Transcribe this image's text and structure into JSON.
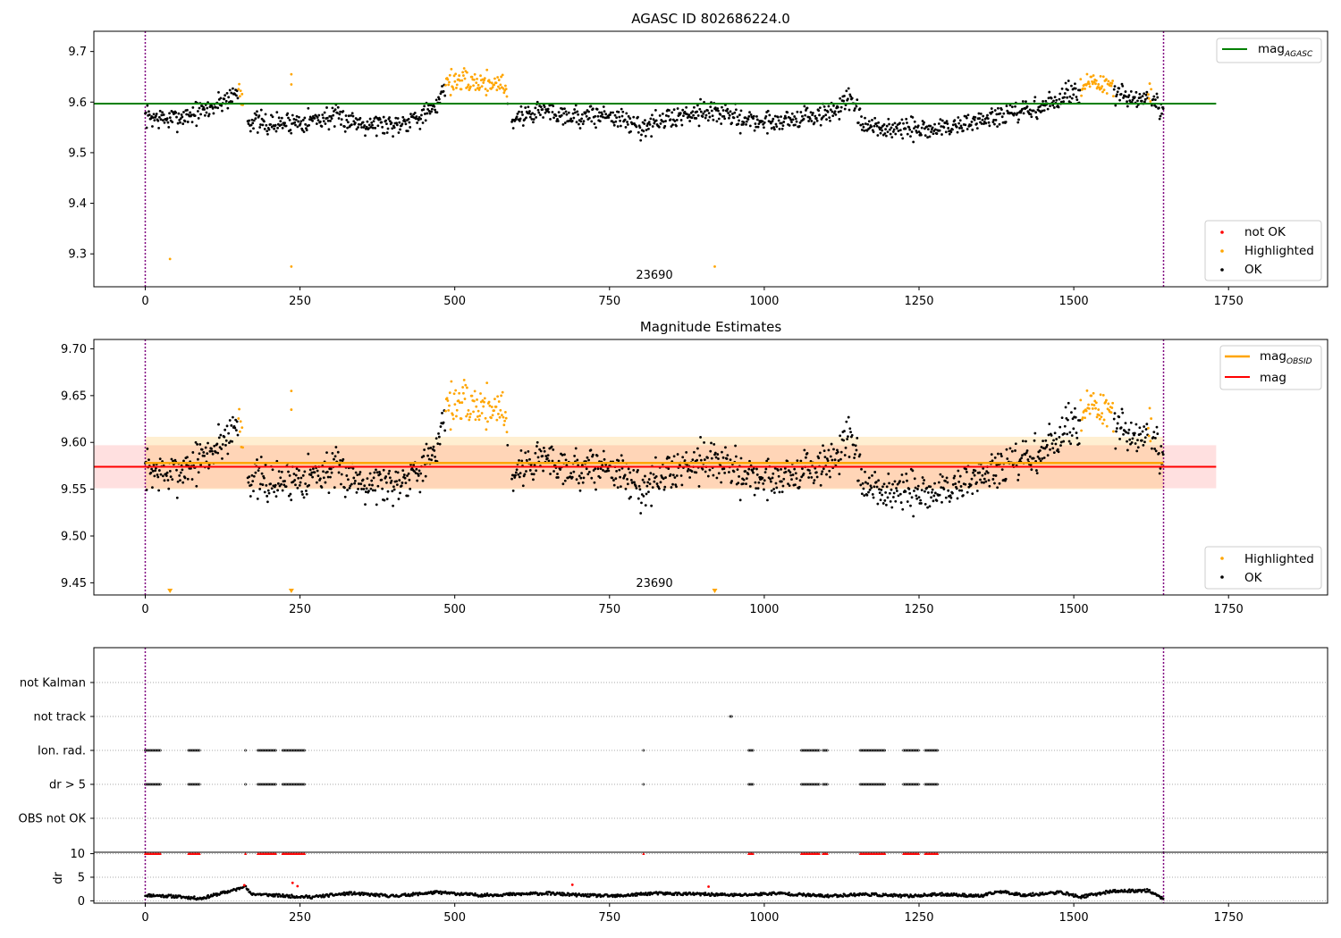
{
  "chart_data": [
    {
      "type": "scatter",
      "title": "AGASC ID 802686224.0",
      "xlim": [
        -83,
        1910
      ],
      "ylim": [
        9.235,
        9.74
      ],
      "xticks": [
        "0",
        "250",
        "500",
        "750",
        "1000",
        "1250",
        "1500",
        "1750"
      ],
      "yticks": [
        "9.3",
        "9.4",
        "9.5",
        "9.6",
        "9.7"
      ],
      "obsid_annotation": "23690",
      "vlines_x": [
        0,
        1645
      ],
      "hline": {
        "name": "mag_AGASC",
        "value": 9.597,
        "x_range": [
          -83,
          1730
        ],
        "color": "#008000"
      },
      "legend_lines": [
        {
          "label": "mag",
          "sub": "AGASC",
          "color": "#008000"
        }
      ],
      "legend_points": [
        {
          "label": "not OK",
          "color": "#ff0000"
        },
        {
          "label": "Highlighted",
          "color": "#ffa500"
        },
        {
          "label": "OK",
          "color": "#000000"
        }
      ],
      "series": [
        {
          "name": "OK",
          "color": "#000000",
          "profile": [
            [
              0,
              9.572
            ],
            [
              40,
              9.565
            ],
            [
              100,
              9.585
            ],
            [
              150,
              9.62
            ],
            [
              165,
              9.565
            ],
            [
              200,
              9.555
            ],
            [
              230,
              9.56
            ],
            [
              300,
              9.57
            ],
            [
              350,
              9.56
            ],
            [
              400,
              9.555
            ],
            [
              470,
              9.585
            ],
            [
              480,
              9.63
            ],
            [
              580,
              9.625
            ],
            [
              590,
              9.565
            ],
            [
              640,
              9.585
            ],
            [
              700,
              9.57
            ],
            [
              750,
              9.575
            ],
            [
              800,
              9.55
            ],
            [
              870,
              9.575
            ],
            [
              900,
              9.585
            ],
            [
              950,
              9.57
            ],
            [
              1000,
              9.56
            ],
            [
              1100,
              9.575
            ],
            [
              1140,
              9.605
            ],
            [
              1160,
              9.55
            ],
            [
              1250,
              9.545
            ],
            [
              1300,
              9.55
            ],
            [
              1350,
              9.565
            ],
            [
              1400,
              9.575
            ],
            [
              1450,
              9.59
            ],
            [
              1510,
              9.625
            ],
            [
              1560,
              9.62
            ],
            [
              1600,
              9.6
            ],
            [
              1620,
              9.61
            ],
            [
              1645,
              9.58
            ]
          ]
        },
        {
          "name": "Highlighted",
          "color": "#ffa500",
          "groups": [
            [
              150,
              160,
              9.64
            ],
            [
              485,
              585,
              9.645
            ],
            [
              1510,
              1565,
              9.655
            ],
            [
              1620,
              1625,
              9.635
            ]
          ],
          "extra": [
            [
              40,
              9.29
            ],
            [
              236,
              9.275
            ],
            [
              920,
              9.275
            ],
            [
              236,
              9.655
            ],
            [
              236,
              9.635
            ]
          ]
        }
      ]
    },
    {
      "type": "scatter",
      "title": "Magnitude Estimates",
      "xlim": [
        -83,
        1910
      ],
      "ylim": [
        9.437,
        9.71
      ],
      "xticks": [
        "0",
        "250",
        "500",
        "750",
        "1000",
        "1250",
        "1500",
        "1750"
      ],
      "yticks": [
        "9.45",
        "9.50",
        "9.55",
        "9.60",
        "9.65",
        "9.70"
      ],
      "obsid_annotation": "23690",
      "vlines_x": [
        0,
        1645
      ],
      "mag_obsid": {
        "value": 9.578,
        "band": [
          9.55,
          9.606
        ],
        "x_range": [
          0,
          1645
        ],
        "color": "#ffa500"
      },
      "mag": {
        "value": 9.574,
        "band": [
          9.551,
          9.597
        ],
        "x_range": [
          -83,
          1730
        ],
        "color": "#ff0000"
      },
      "triangle_markers_x": [
        40,
        236,
        920
      ],
      "legend_lines": [
        {
          "label": "mag",
          "sub": "OBSID",
          "color": "#ffa500"
        },
        {
          "label": "mag",
          "sub": "",
          "color": "#ff0000"
        }
      ],
      "legend_points": [
        {
          "label": "Highlighted",
          "color": "#ffa500"
        },
        {
          "label": "OK",
          "color": "#000000"
        }
      ]
    },
    {
      "type": "scatter",
      "title": "",
      "xlim": [
        -83,
        1910
      ],
      "flag_labels": [
        "not Kalman",
        "not track",
        "Ion. rad.",
        "dr > 5",
        "OBS not OK"
      ],
      "flag_ranges": {
        "not Kalman": [],
        "not track": [
          [
            945,
            948
          ]
        ],
        "Ion. rad.": [
          [
            0,
            25
          ],
          [
            70,
            88
          ],
          [
            162,
            164
          ],
          [
            182,
            212
          ],
          [
            222,
            258
          ],
          [
            805,
            806
          ],
          [
            975,
            982
          ],
          [
            1060,
            1090
          ],
          [
            1095,
            1102
          ],
          [
            1155,
            1195
          ],
          [
            1225,
            1250
          ],
          [
            1260,
            1282
          ]
        ],
        "dr > 5": [
          [
            0,
            25
          ],
          [
            70,
            88
          ],
          [
            162,
            164
          ],
          [
            182,
            212
          ],
          [
            222,
            258
          ],
          [
            805,
            806
          ],
          [
            975,
            982
          ],
          [
            1060,
            1090
          ],
          [
            1095,
            1102
          ],
          [
            1155,
            1195
          ],
          [
            1225,
            1250
          ],
          [
            1260,
            1282
          ]
        ],
        "OBS not OK": []
      },
      "dr_yticks": [
        "0",
        "5",
        "10"
      ],
      "dr_ylabel": "dr",
      "dr_ylim": [
        -0.5,
        10.3
      ],
      "xticks": [
        "0",
        "250",
        "500",
        "750",
        "1000",
        "1250",
        "1500",
        "1750"
      ],
      "vlines_x": [
        0,
        1645
      ],
      "dr_profile": [
        [
          0,
          1.2
        ],
        [
          40,
          1.0
        ],
        [
          90,
          0.5
        ],
        [
          150,
          2.5
        ],
        [
          160,
          3.3
        ],
        [
          170,
          1.5
        ],
        [
          230,
          1.0
        ],
        [
          270,
          0.8
        ],
        [
          330,
          1.6
        ],
        [
          400,
          1.0
        ],
        [
          470,
          1.8
        ],
        [
          540,
          1.2
        ],
        [
          600,
          1.4
        ],
        [
          650,
          1.6
        ],
        [
          700,
          1.2
        ],
        [
          760,
          1.0
        ],
        [
          820,
          1.6
        ],
        [
          900,
          1.4
        ],
        [
          960,
          1.2
        ],
        [
          1020,
          1.6
        ],
        [
          1100,
          1.0
        ],
        [
          1160,
          1.4
        ],
        [
          1230,
          1.0
        ],
        [
          1290,
          1.4
        ],
        [
          1350,
          1.0
        ],
        [
          1380,
          2.0
        ],
        [
          1420,
          1.2
        ],
        [
          1480,
          1.8
        ],
        [
          1510,
          0.8
        ],
        [
          1560,
          2.0
        ],
        [
          1620,
          2.2
        ],
        [
          1645,
          0.4
        ]
      ]
    }
  ]
}
